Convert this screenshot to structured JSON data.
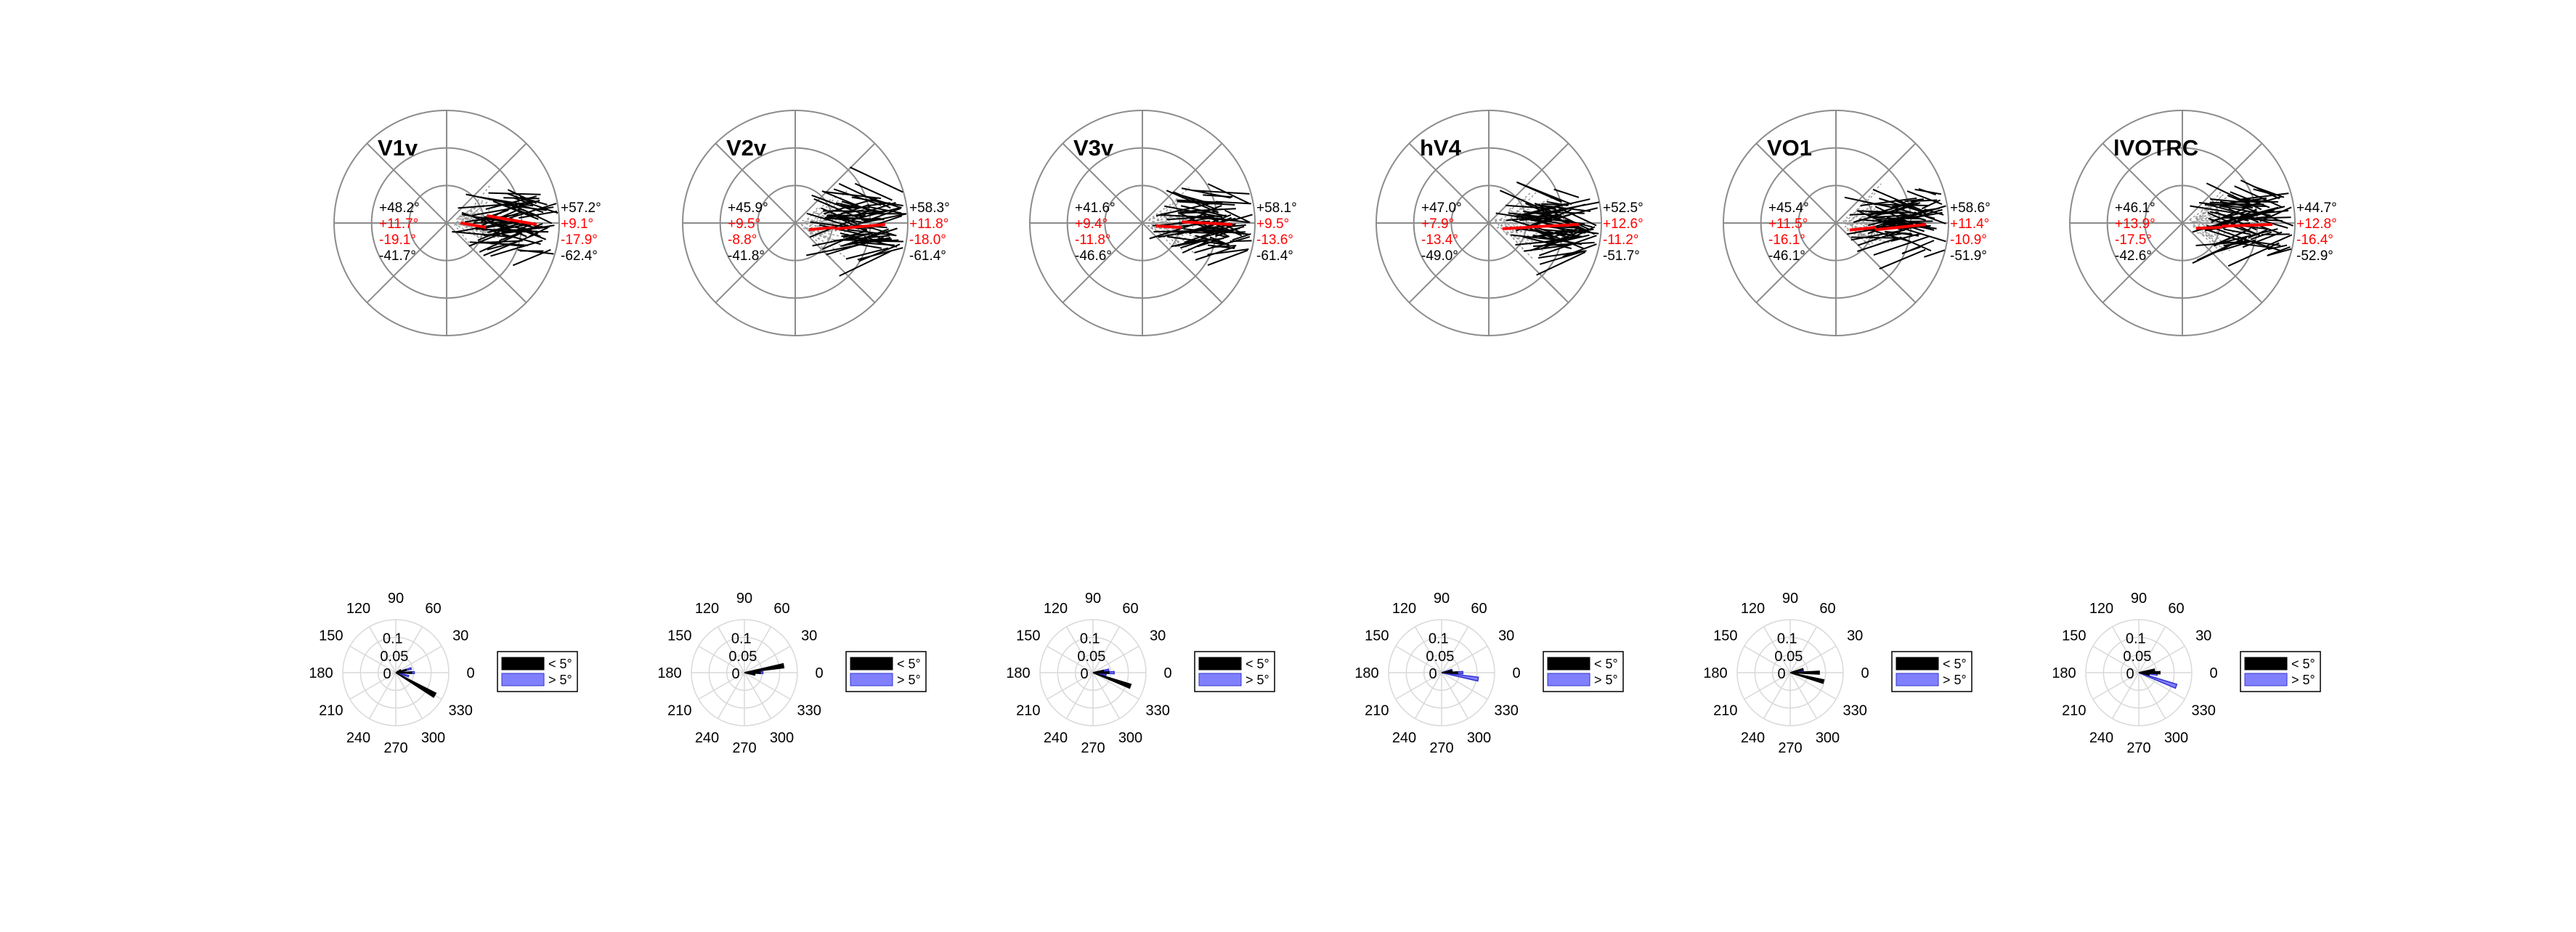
{
  "colors": {
    "grid": "#8c8c8c",
    "fine_grid": "#d9d9d9",
    "vector": "#000000",
    "scatter": "#9a9a9a",
    "mean": "#ff0000",
    "small_ecc": "#000000",
    "large_ecc": "#8080ff",
    "large_ecc_edge": "#3333cc"
  },
  "chart_data": [
    {
      "type": "polar-vector",
      "title": "V1v",
      "stats": {
        "upper_outer": "+48.2°",
        "upper_inner": "+11.7°",
        "lower_inner": "-19.1°",
        "lower_outer": "-41.7°",
        "right_upper_outer": "+57.2°",
        "right_upper_inner": "+9.1°",
        "right_lower_inner": "-17.9°",
        "right_lower_outer": "-62.4°"
      },
      "mean_angle_deg": -10
    },
    {
      "type": "polar-vector",
      "title": "V2v",
      "stats": {
        "upper_outer": "+45.9°",
        "upper_inner": "+9.5°",
        "lower_inner": "-8.8°",
        "lower_outer": "-41.8°",
        "right_upper_outer": "+58.3°",
        "right_upper_inner": "+11.8°",
        "right_lower_inner": "-18.0°",
        "right_lower_outer": "-61.4°"
      },
      "mean_angle_deg": 5
    },
    {
      "type": "polar-vector",
      "title": "V3v",
      "stats": {
        "upper_outer": "+41.6°",
        "upper_inner": "+9.4°",
        "lower_inner": "-11.8°",
        "lower_outer": "-46.6°",
        "right_upper_outer": "+58.1°",
        "right_upper_inner": "+9.5°",
        "right_lower_inner": "-13.6°",
        "right_lower_outer": "-61.4°"
      },
      "mean_angle_deg": -3
    },
    {
      "type": "polar-vector",
      "title": "hV4",
      "stats": {
        "upper_outer": "+47.0°",
        "upper_inner": "+7.9°",
        "lower_inner": "-13.4°",
        "lower_outer": "-49.0°",
        "right_upper_outer": "+52.5°",
        "right_upper_inner": "+12.6°",
        "right_lower_inner": "-11.2°",
        "right_lower_outer": "-51.7°"
      },
      "mean_angle_deg": 3
    },
    {
      "type": "polar-vector",
      "title": "VO1",
      "stats": {
        "upper_outer": "+45.4°",
        "upper_inner": "+11.5°",
        "lower_inner": "-16.1°",
        "lower_outer": "-46.1°",
        "right_upper_outer": "+58.6°",
        "right_upper_inner": "+11.4°",
        "right_lower_inner": "-10.9°",
        "right_lower_outer": "-51.9°"
      },
      "mean_angle_deg": 6
    },
    {
      "type": "polar-vector",
      "title": "lVOTRC",
      "stats": {
        "upper_outer": "+46.1°",
        "upper_inner": "+13.9°",
        "lower_inner": "-17.5°",
        "lower_outer": "-42.6°",
        "right_upper_outer": "+44.7°",
        "right_upper_inner": "+12.8°",
        "right_lower_inner": "-16.4°",
        "right_lower_outer": "-52.9°"
      },
      "mean_angle_deg": 2
    }
  ],
  "rose_plots": {
    "angle_labels": [
      "0",
      "30",
      "60",
      "90",
      "120",
      "150",
      "180",
      "210",
      "240",
      "270",
      "300",
      "330"
    ],
    "radial_labels": [
      "0",
      "0.05",
      "0.1"
    ],
    "legend": {
      "small": "< 5°",
      "large": "> 5°"
    },
    "panels": [
      {
        "small_ecc": [
          {
            "angle": -30,
            "value": 0.085
          },
          {
            "angle": 0,
            "value": 0.03
          },
          {
            "angle": 15,
            "value": 0.02
          },
          {
            "angle": 30,
            "value": 0.01
          }
        ],
        "large_ecc": [
          {
            "angle": 0,
            "value": 0.035
          },
          {
            "angle": 15,
            "value": 0.03
          },
          {
            "angle": -15,
            "value": 0.025
          }
        ]
      },
      {
        "small_ecc": [
          {
            "angle": 10,
            "value": 0.075
          },
          {
            "angle": 0,
            "value": 0.03
          },
          {
            "angle": -10,
            "value": 0.02
          }
        ],
        "large_ecc": [
          {
            "angle": 0,
            "value": 0.035
          },
          {
            "angle": 10,
            "value": 0.025
          },
          {
            "angle": -10,
            "value": 0.02
          }
        ]
      },
      {
        "small_ecc": [
          {
            "angle": -20,
            "value": 0.075
          },
          {
            "angle": 0,
            "value": 0.03
          },
          {
            "angle": 10,
            "value": 0.02
          }
        ],
        "large_ecc": [
          {
            "angle": 0,
            "value": 0.04
          },
          {
            "angle": 10,
            "value": 0.03
          },
          {
            "angle": -10,
            "value": 0.025
          }
        ]
      },
      {
        "small_ecc": [
          {
            "angle": 0,
            "value": 0.03
          },
          {
            "angle": 10,
            "value": 0.02
          }
        ],
        "large_ecc": [
          {
            "angle": -10,
            "value": 0.07
          },
          {
            "angle": 0,
            "value": 0.04
          },
          {
            "angle": 15,
            "value": 0.02
          }
        ]
      },
      {
        "small_ecc": [
          {
            "angle": -15,
            "value": 0.065
          },
          {
            "angle": 0,
            "value": 0.055
          },
          {
            "angle": 15,
            "value": 0.025
          }
        ],
        "large_ecc": [
          {
            "angle": 0,
            "value": 0.035
          },
          {
            "angle": 10,
            "value": 0.025
          }
        ]
      },
      {
        "small_ecc": [
          {
            "angle": 0,
            "value": 0.04
          },
          {
            "angle": 10,
            "value": 0.03
          },
          {
            "angle": -10,
            "value": 0.02
          }
        ],
        "large_ecc": [
          {
            "angle": -20,
            "value": 0.075
          },
          {
            "angle": -5,
            "value": 0.035
          },
          {
            "angle": 10,
            "value": 0.025
          }
        ]
      }
    ]
  }
}
